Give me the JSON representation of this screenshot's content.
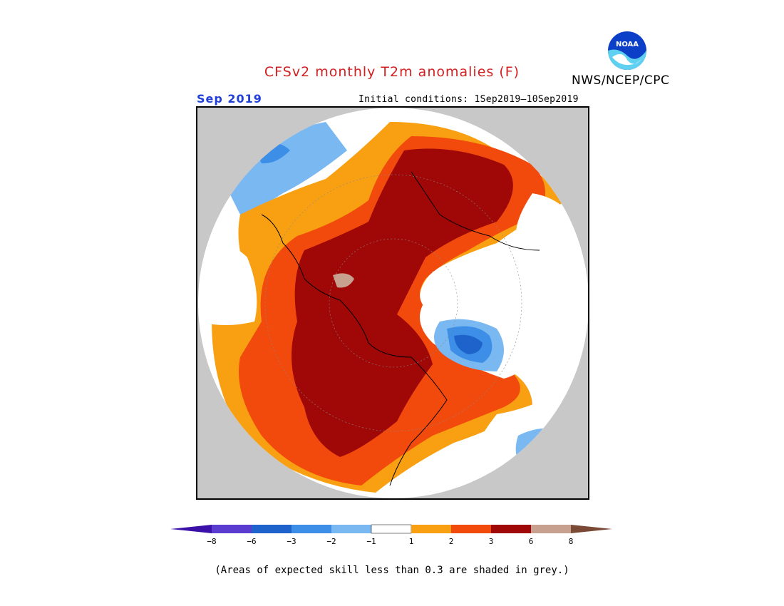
{
  "header": {
    "title": "CFSv2 monthly T2m anomalies (F)",
    "credit": "NWS/NCEP/CPC",
    "logo_text": "NOAA",
    "month": "Sep 2019",
    "initial_conditions": "Initial conditions: 1Sep2019—10Sep2019"
  },
  "map": {
    "projection": "north-polar-stereographic",
    "background_color": "#c8c8c8",
    "coastlines": true
  },
  "legend": {
    "tick_labels": [
      "−8",
      "−6",
      "−3",
      "−2",
      "−1",
      "1",
      "2",
      "3",
      "6",
      "8"
    ],
    "colors": [
      "#3a10a8",
      "#5a3dd0",
      "#1e63cc",
      "#3d8ee6",
      "#7ab8f2",
      "#ffffff",
      "#f9a012",
      "#f24a0c",
      "#a00808",
      "#c8a090",
      "#7a4a36"
    ],
    "note": "(Areas of expected skill less than 0.3 are shaded in grey.)"
  }
}
